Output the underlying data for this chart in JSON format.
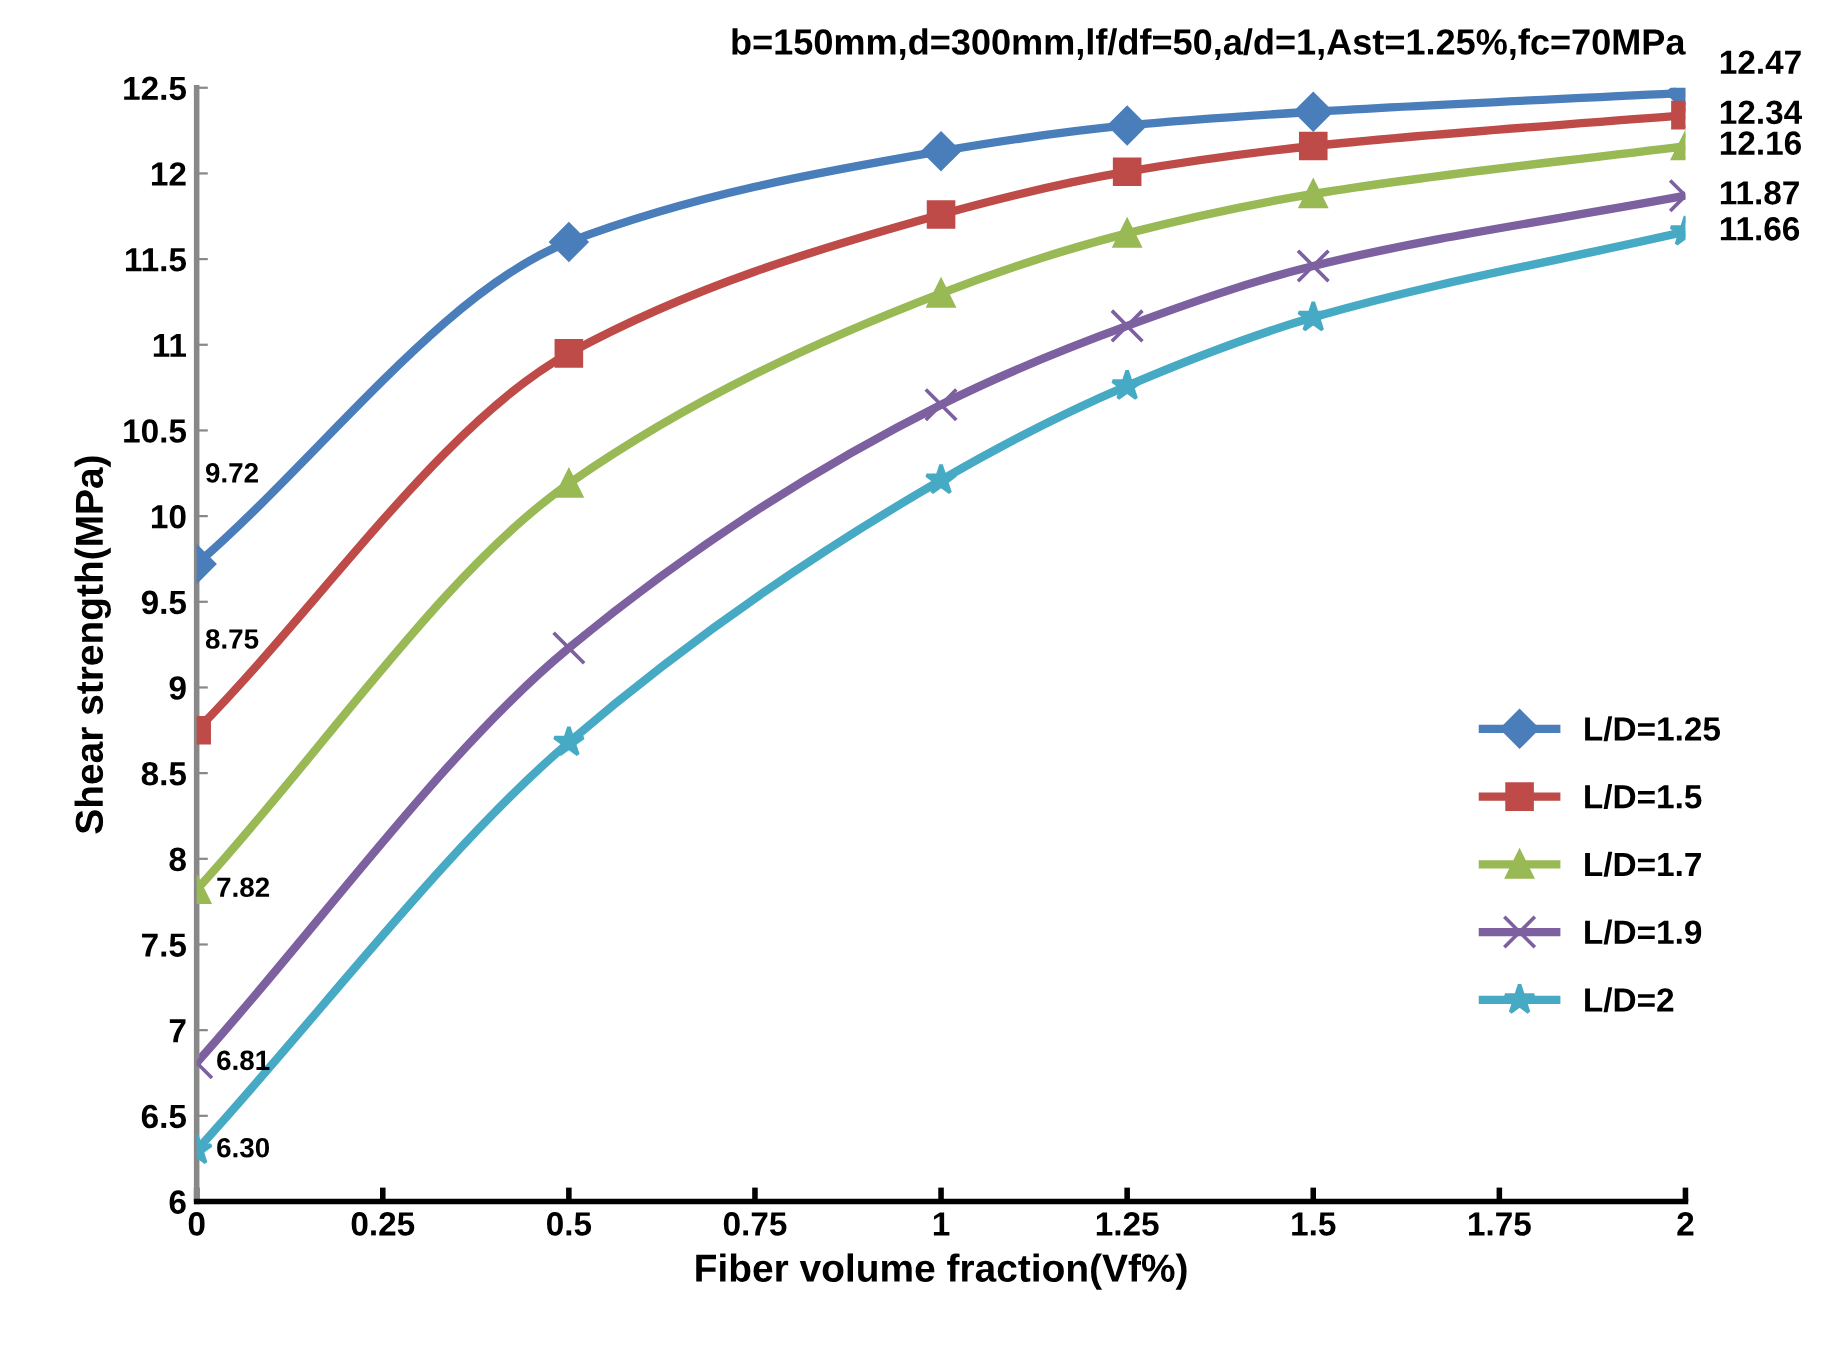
{
  "chart_data": {
    "type": "line",
    "title": "b=150mm,d=300mm,lf/df=50,a/d=1,Ast=1.25%,fc=70MPa",
    "xlabel": "Fiber volume fraction(Vf%)",
    "ylabel": "Shear strength(MPa)",
    "x": [
      0,
      0.5,
      1,
      1.25,
      1.5,
      2
    ],
    "series": [
      {
        "name": "L/D=1.25",
        "color": "#4a7ebb",
        "marker": "diamond",
        "values": [
          9.72,
          11.6,
          12.13,
          12.28,
          12.36,
          12.47
        ],
        "value_labels": [
          "9.72",
          null,
          null,
          null,
          null,
          "12.47"
        ]
      },
      {
        "name": "L/D=1.5",
        "color": "#be4b48",
        "marker": "square",
        "values": [
          8.75,
          10.95,
          11.76,
          12.01,
          12.16,
          12.34
        ],
        "value_labels": [
          "8.75",
          null,
          null,
          null,
          null,
          "12.34"
        ]
      },
      {
        "name": "L/D=1.7",
        "color": "#98b954",
        "marker": "triangle",
        "values": [
          7.82,
          10.19,
          11.3,
          11.65,
          11.88,
          12.16
        ],
        "value_labels": [
          "7.82",
          null,
          null,
          null,
          null,
          "12.16"
        ]
      },
      {
        "name": "L/D=1.9",
        "color": "#7d60a0",
        "marker": "cross",
        "values": [
          6.81,
          9.23,
          10.65,
          11.11,
          11.46,
          11.87
        ],
        "value_labels": [
          "6.81",
          null,
          null,
          null,
          null,
          "11.87"
        ]
      },
      {
        "name": "L/D=2",
        "color": "#46aac5",
        "marker": "star",
        "values": [
          6.3,
          8.68,
          10.21,
          10.76,
          11.16,
          11.66
        ],
        "value_labels": [
          "6.30",
          null,
          null,
          null,
          null,
          "11.66"
        ]
      }
    ],
    "xlim": [
      0,
      2
    ],
    "xticks": [
      0,
      0.25,
      0.5,
      0.75,
      1,
      1.25,
      1.5,
      1.75,
      2
    ],
    "ylim": [
      6,
      12.5
    ],
    "yticks": [
      6,
      6.5,
      7,
      7.5,
      8,
      8.5,
      9,
      9.5,
      10,
      10.5,
      11,
      11.5,
      12,
      12.5
    ],
    "grid": false,
    "legend": "right",
    "line_style": "solid"
  }
}
